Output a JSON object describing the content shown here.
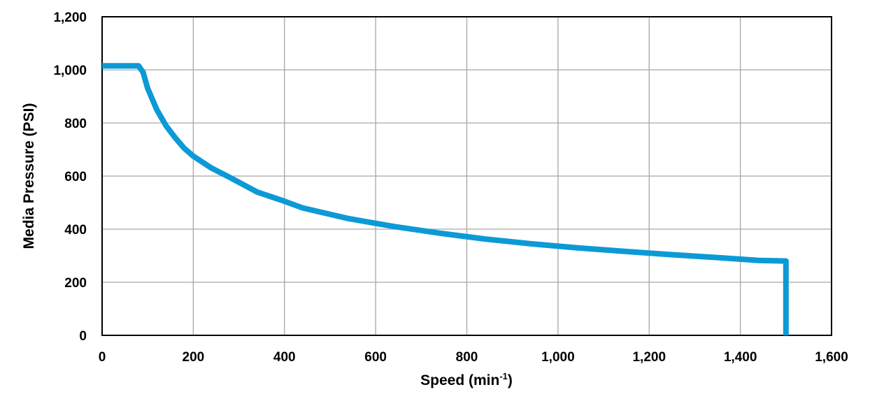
{
  "chart_data": {
    "type": "line",
    "xlabel": "Speed (min",
    "xlabel_sup": "-1",
    "xlabel_end": ")",
    "ylabel": "Media Pressure (PSI)",
    "xlim": [
      0,
      1600
    ],
    "ylim": [
      0,
      1200
    ],
    "x_ticks": [
      0,
      200,
      400,
      600,
      800,
      1000,
      1200,
      1400,
      1600
    ],
    "x_tick_labels": [
      "0",
      "200",
      "400",
      "600",
      "800",
      "1,000",
      "1,200",
      "1,400",
      "1,600"
    ],
    "y_ticks": [
      0,
      200,
      400,
      600,
      800,
      1000,
      1200
    ],
    "y_tick_labels": [
      "0",
      "200",
      "400",
      "600",
      "800",
      "1,000",
      "1,200"
    ],
    "grid": true,
    "series": [
      {
        "color": "#0c9ad6",
        "x": [
          0,
          80,
          90,
          100,
          120,
          140,
          160,
          180,
          200,
          240,
          280,
          340,
          400,
          440,
          540,
          640,
          740,
          840,
          940,
          1040,
          1140,
          1240,
          1340,
          1440,
          1500,
          1500
        ],
        "y": [
          1015,
          1015,
          990,
          930,
          850,
          790,
          745,
          705,
          675,
          630,
          595,
          540,
          505,
          480,
          440,
          410,
          385,
          363,
          345,
          330,
          317,
          305,
          294,
          282,
          280,
          0
        ]
      }
    ]
  }
}
